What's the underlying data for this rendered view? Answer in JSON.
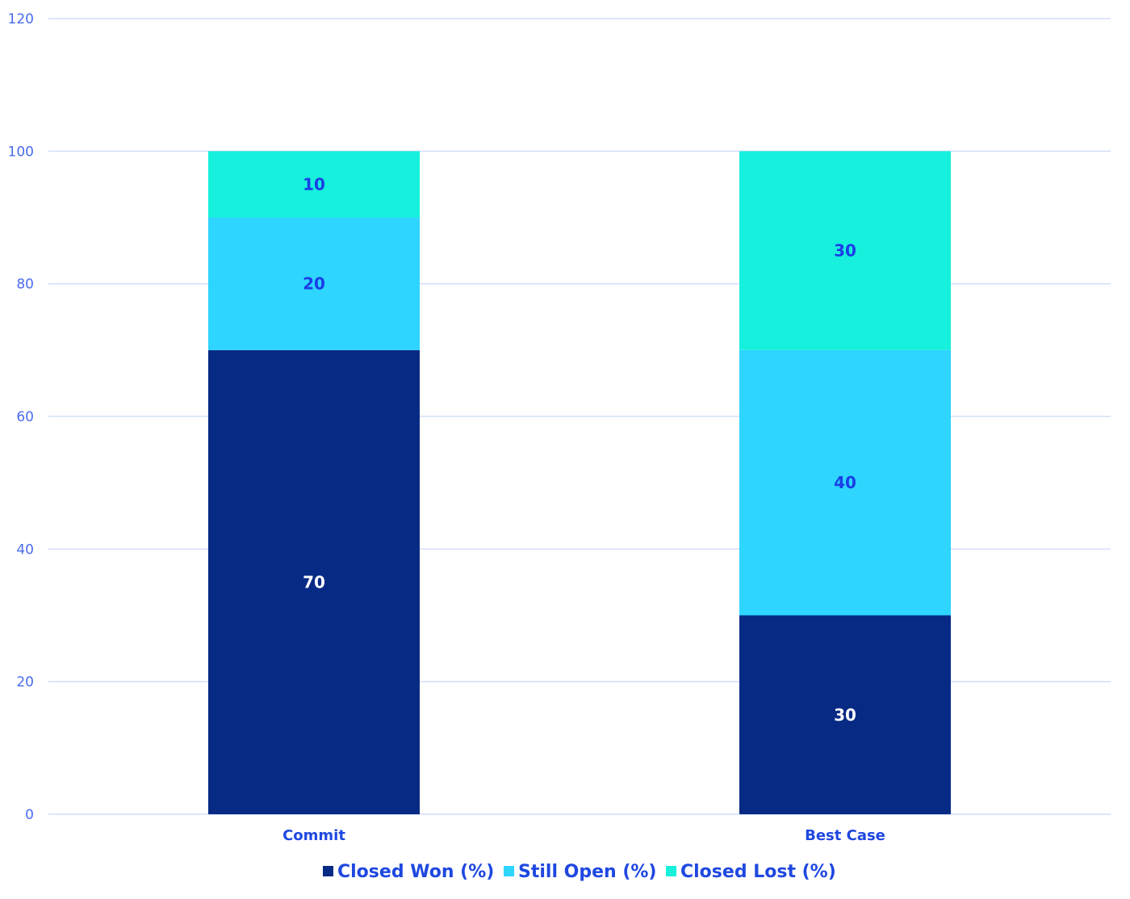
{
  "chart_data": {
    "type": "bar",
    "stacked": true,
    "categories": [
      "Commit",
      "Best Case"
    ],
    "series": [
      {
        "name": "Closed Won (%)",
        "values": [
          70,
          30
        ],
        "color": "#072a85",
        "label_color": "#ffffff"
      },
      {
        "name": "Still Open (%)",
        "values": [
          20,
          40
        ],
        "color": "#2ed5ff",
        "label_color": "#1a3ee6"
      },
      {
        "name": "Closed Lost (%)",
        "values": [
          10,
          30
        ],
        "color": "#17f0dd",
        "label_color": "#1a3ee6"
      }
    ],
    "ylim": [
      0,
      120
    ],
    "yticks": [
      0,
      20,
      40,
      60,
      80,
      100,
      120
    ],
    "grid": true,
    "legend": "bottom",
    "title": "",
    "xlabel": "",
    "ylabel": ""
  }
}
